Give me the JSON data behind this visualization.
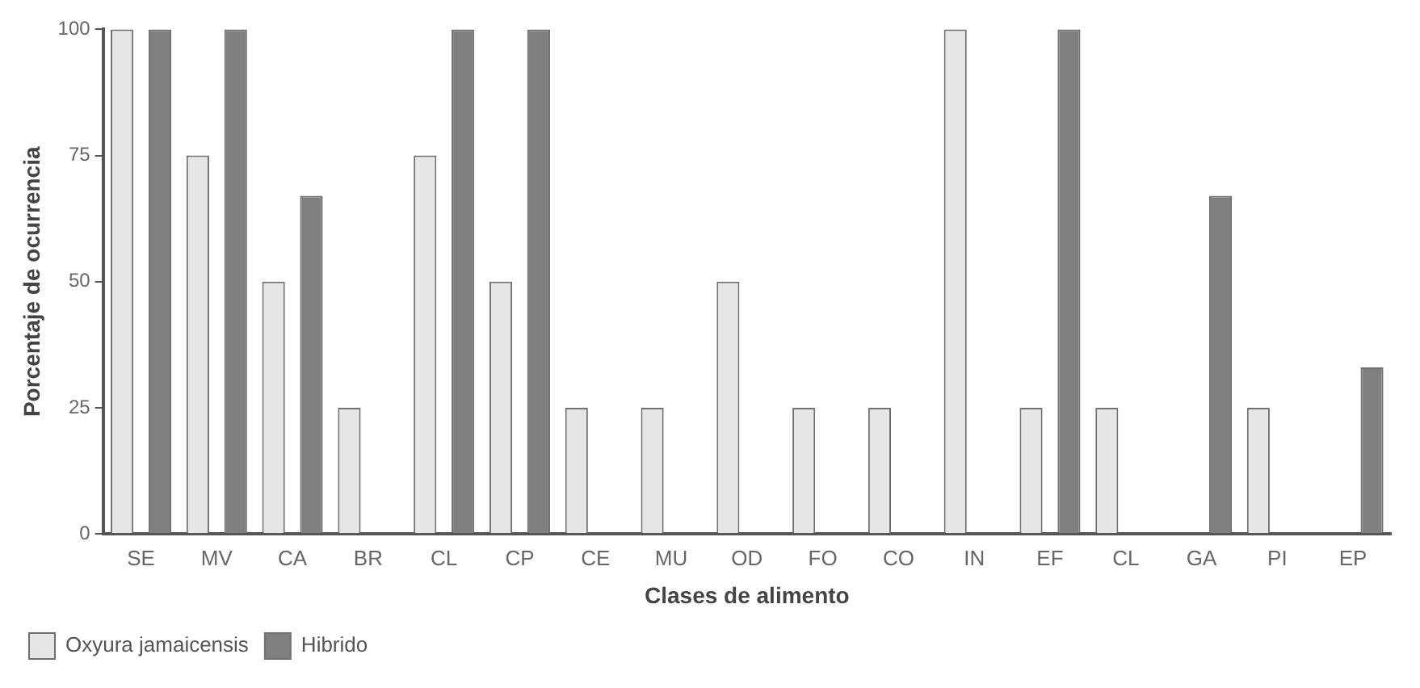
{
  "chart_data": {
    "type": "bar",
    "xlabel": "Clases de alimento",
    "ylabel": "Porcentaje de ocurrencia",
    "categories": [
      "SE",
      "MV",
      "CA",
      "BR",
      "CL",
      "CP",
      "CE",
      "MU",
      "OD",
      "FO",
      "CO",
      "IN",
      "EF",
      "CL",
      "GA",
      "PI",
      "EP"
    ],
    "series": [
      {
        "name": "Oxyura jamaicensis",
        "color": "#e6e6e6",
        "values": [
          100,
          75,
          50,
          25,
          75,
          50,
          25,
          25,
          50,
          25,
          25,
          100,
          25,
          25,
          0,
          25,
          0
        ]
      },
      {
        "name": "Hibrido",
        "color": "#808080",
        "values": [
          100,
          100,
          67,
          0,
          100,
          100,
          0,
          0,
          0,
          0,
          0,
          0,
          100,
          0,
          67,
          0,
          33
        ]
      }
    ],
    "ylim": [
      0,
      100
    ],
    "yticks": [
      0,
      25,
      50,
      75,
      100
    ],
    "grid": false,
    "legend": "bottom left"
  }
}
